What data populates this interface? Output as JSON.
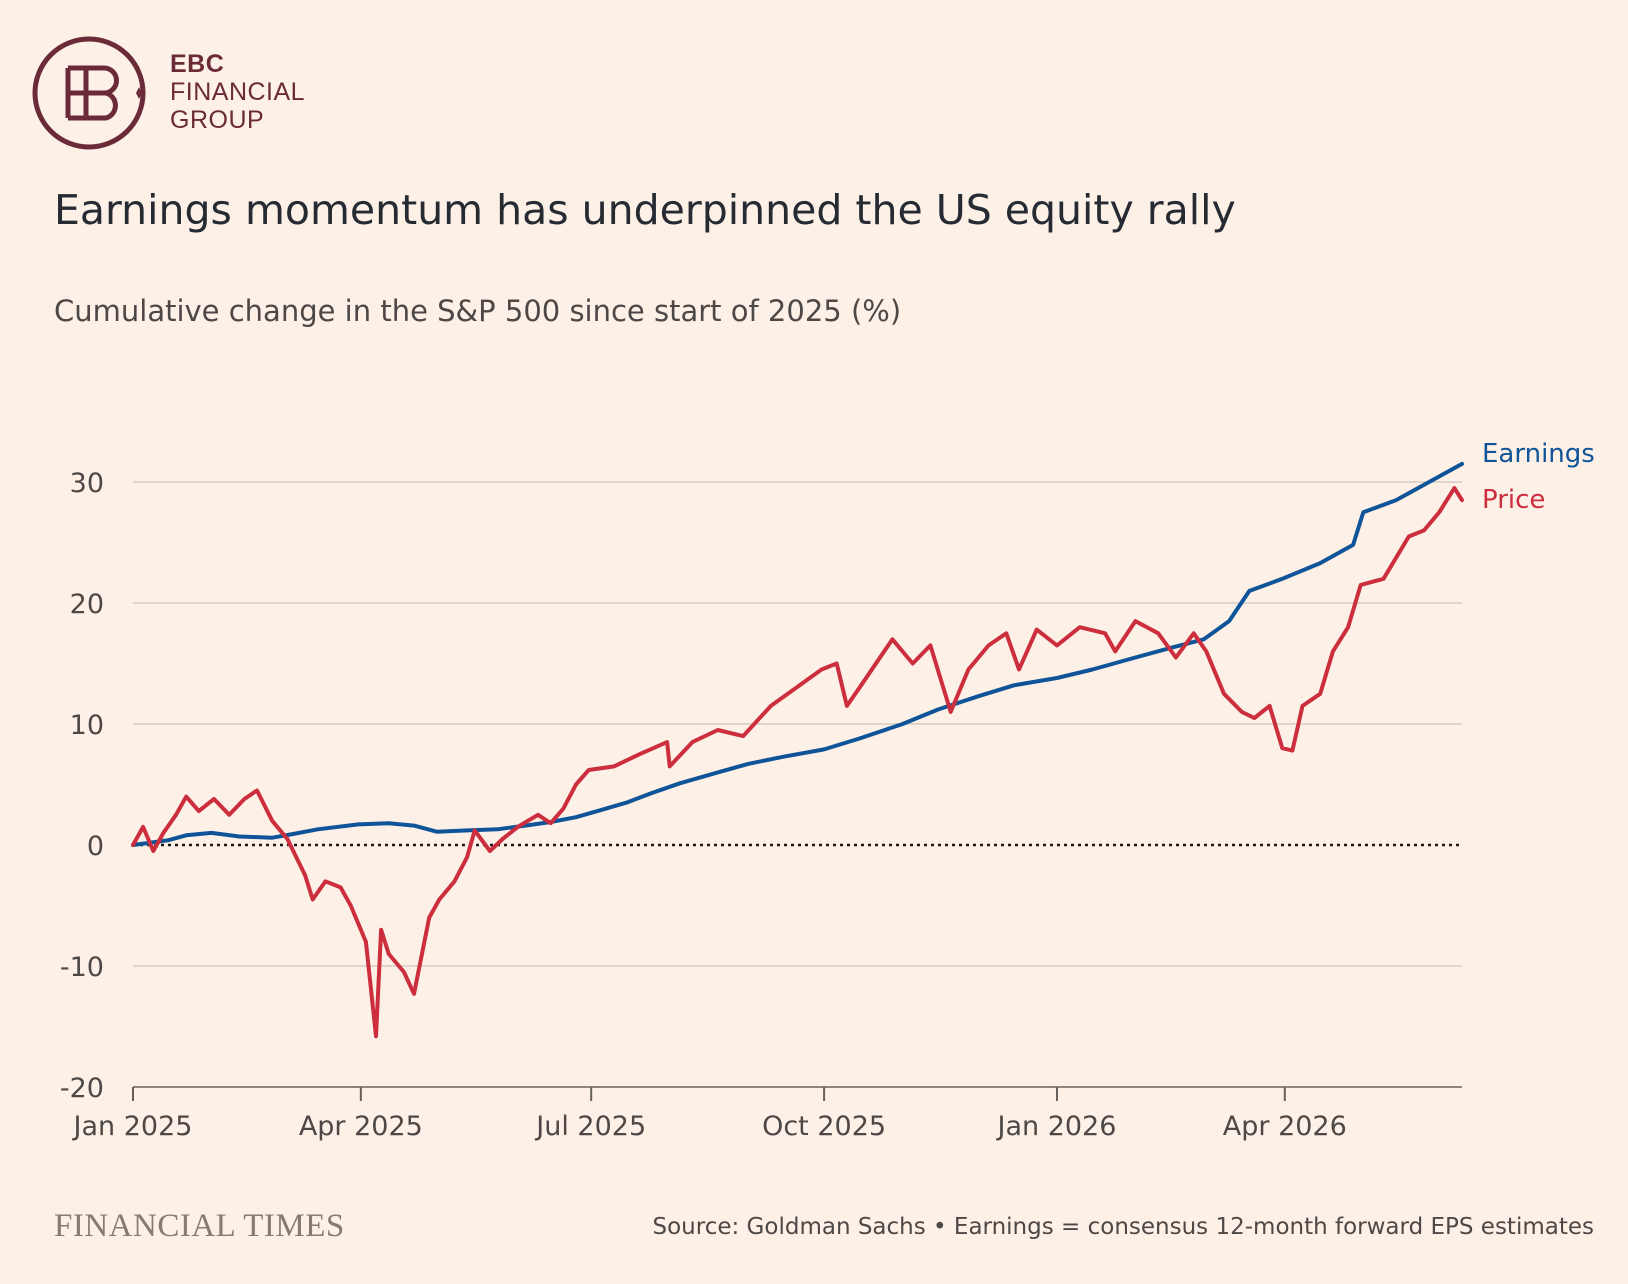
{
  "brand": {
    "line1": "EBC",
    "line2": "FINANCIAL",
    "line3": "GROUP",
    "color": "#6b2a37",
    "mark_letters": "EB"
  },
  "footer": {
    "publisher": "FINANCIAL TIMES",
    "source": "Source: Goldman Sachs • Earnings = consensus 12-month forward EPS estimates"
  },
  "chart_data": {
    "type": "line",
    "title": "Earnings momentum has underpinned the US equity rally",
    "subtitle": "Cumulative change in the S&P 500 since start of 2025 (%)",
    "xlabel": "",
    "ylabel": "",
    "x_range": [
      "2025-01-01",
      "2026-06-10"
    ],
    "ylim": [
      -20,
      32
    ],
    "y_ticks": [
      30,
      20,
      10,
      0,
      -10,
      -20
    ],
    "x_ticks": [
      {
        "date": "2025-01-01",
        "label": "Jan 2025"
      },
      {
        "date": "2025-04-01",
        "label": "Apr 2025"
      },
      {
        "date": "2025-07-01",
        "label": "Jul 2025"
      },
      {
        "date": "2025-10-01",
        "label": "Oct 2025"
      },
      {
        "date": "2026-01-01",
        "label": "Jan 2026"
      },
      {
        "date": "2026-04-01",
        "label": "Apr 2026"
      }
    ],
    "grid": "horizontal",
    "zero_line": "dotted",
    "legend": "labels at right end of lines",
    "series": [
      {
        "name": "Earnings",
        "color": "#0f5499",
        "points": [
          [
            "2025-01-01",
            0
          ],
          [
            "2025-01-08",
            0.2
          ],
          [
            "2025-01-15",
            0.4
          ],
          [
            "2025-01-22",
            0.8
          ],
          [
            "2025-02-01",
            1.0
          ],
          [
            "2025-02-12",
            0.7
          ],
          [
            "2025-02-25",
            0.6
          ],
          [
            "2025-03-05",
            0.9
          ],
          [
            "2025-03-15",
            1.3
          ],
          [
            "2025-03-31",
            1.7
          ],
          [
            "2025-04-12",
            1.8
          ],
          [
            "2025-04-22",
            1.6
          ],
          [
            "2025-05-01",
            1.1
          ],
          [
            "2025-05-12",
            1.2
          ],
          [
            "2025-05-25",
            1.3
          ],
          [
            "2025-06-05",
            1.6
          ],
          [
            "2025-06-15",
            1.9
          ],
          [
            "2025-06-25",
            2.3
          ],
          [
            "2025-07-05",
            2.9
          ],
          [
            "2025-07-15",
            3.5
          ],
          [
            "2025-07-25",
            4.3
          ],
          [
            "2025-08-05",
            5.1
          ],
          [
            "2025-08-20",
            6.0
          ],
          [
            "2025-09-01",
            6.7
          ],
          [
            "2025-09-15",
            7.3
          ],
          [
            "2025-10-01",
            7.9
          ],
          [
            "2025-10-15",
            8.8
          ],
          [
            "2025-11-01",
            10.0
          ],
          [
            "2025-11-15",
            11.2
          ],
          [
            "2025-12-01",
            12.3
          ],
          [
            "2025-12-15",
            13.2
          ],
          [
            "2026-01-01",
            13.8
          ],
          [
            "2026-01-15",
            14.5
          ],
          [
            "2026-02-01",
            15.5
          ],
          [
            "2026-02-15",
            16.3
          ],
          [
            "2026-02-28",
            17.0
          ],
          [
            "2026-03-10",
            18.5
          ],
          [
            "2026-03-18",
            21.0
          ],
          [
            "2026-03-31",
            22.0
          ],
          [
            "2026-04-15",
            23.3
          ],
          [
            "2026-04-28",
            24.8
          ],
          [
            "2026-05-02",
            27.5
          ],
          [
            "2026-05-15",
            28.5
          ],
          [
            "2026-05-28",
            30.0
          ],
          [
            "2026-06-10",
            31.5
          ]
        ]
      },
      {
        "name": "Price",
        "color": "#cc2e3e",
        "points": [
          [
            "2025-01-01",
            0
          ],
          [
            "2025-01-05",
            1.5
          ],
          [
            "2025-01-09",
            -0.5
          ],
          [
            "2025-01-13",
            1.0
          ],
          [
            "2025-01-18",
            2.5
          ],
          [
            "2025-01-22",
            4.0
          ],
          [
            "2025-01-27",
            2.8
          ],
          [
            "2025-02-02",
            3.8
          ],
          [
            "2025-02-08",
            2.5
          ],
          [
            "2025-02-14",
            3.8
          ],
          [
            "2025-02-19",
            4.5
          ],
          [
            "2025-02-25",
            2.0
          ],
          [
            "2025-03-03",
            0.5
          ],
          [
            "2025-03-10",
            -2.5
          ],
          [
            "2025-03-13",
            -4.5
          ],
          [
            "2025-03-18",
            -3.0
          ],
          [
            "2025-03-24",
            -3.5
          ],
          [
            "2025-03-28",
            -5.0
          ],
          [
            "2025-04-03",
            -8.0
          ],
          [
            "2025-04-07",
            -15.8
          ],
          [
            "2025-04-09",
            -7.0
          ],
          [
            "2025-04-12",
            -9.0
          ],
          [
            "2025-04-18",
            -10.5
          ],
          [
            "2025-04-22",
            -12.3
          ],
          [
            "2025-04-28",
            -6.0
          ],
          [
            "2025-05-02",
            -4.5
          ],
          [
            "2025-05-08",
            -3.0
          ],
          [
            "2025-05-13",
            -1.0
          ],
          [
            "2025-05-16",
            1.2
          ],
          [
            "2025-05-22",
            -0.5
          ],
          [
            "2025-05-27",
            0.5
          ],
          [
            "2025-06-02",
            1.5
          ],
          [
            "2025-06-10",
            2.5
          ],
          [
            "2025-06-15",
            1.8
          ],
          [
            "2025-06-20",
            3.0
          ],
          [
            "2025-06-25",
            5.0
          ],
          [
            "2025-06-30",
            6.2
          ],
          [
            "2025-07-10",
            6.5
          ],
          [
            "2025-07-20",
            7.5
          ],
          [
            "2025-07-31",
            8.5
          ],
          [
            "2025-08-01",
            6.5
          ],
          [
            "2025-08-10",
            8.5
          ],
          [
            "2025-08-20",
            9.5
          ],
          [
            "2025-08-30",
            9.0
          ],
          [
            "2025-09-10",
            11.5
          ],
          [
            "2025-09-20",
            13.0
          ],
          [
            "2025-09-30",
            14.5
          ],
          [
            "2025-10-06",
            15.0
          ],
          [
            "2025-10-10",
            11.5
          ],
          [
            "2025-10-15",
            13.0
          ],
          [
            "2025-10-28",
            17.0
          ],
          [
            "2025-11-05",
            15.0
          ],
          [
            "2025-11-12",
            16.5
          ],
          [
            "2025-11-20",
            11.0
          ],
          [
            "2025-11-27",
            14.5
          ],
          [
            "2025-12-05",
            16.5
          ],
          [
            "2025-12-12",
            17.5
          ],
          [
            "2025-12-17",
            14.5
          ],
          [
            "2025-12-24",
            17.8
          ],
          [
            "2026-01-01",
            16.5
          ],
          [
            "2026-01-10",
            18.0
          ],
          [
            "2026-01-20",
            17.5
          ],
          [
            "2026-01-24",
            16.0
          ],
          [
            "2026-02-01",
            18.5
          ],
          [
            "2026-02-10",
            17.5
          ],
          [
            "2026-02-17",
            15.5
          ],
          [
            "2026-02-24",
            17.5
          ],
          [
            "2026-03-01",
            16.0
          ],
          [
            "2026-03-08",
            12.5
          ],
          [
            "2026-03-15",
            11.0
          ],
          [
            "2026-03-20",
            10.5
          ],
          [
            "2026-03-26",
            11.5
          ],
          [
            "2026-03-31",
            8.0
          ],
          [
            "2026-04-04",
            7.8
          ],
          [
            "2026-04-08",
            11.5
          ],
          [
            "2026-04-15",
            12.5
          ],
          [
            "2026-04-20",
            16.0
          ],
          [
            "2026-04-26",
            18.0
          ],
          [
            "2026-05-01",
            21.5
          ],
          [
            "2026-05-10",
            22.0
          ],
          [
            "2026-05-20",
            25.5
          ],
          [
            "2026-05-26",
            26.0
          ],
          [
            "2026-06-01",
            27.5
          ],
          [
            "2026-06-07",
            29.5
          ],
          [
            "2026-06-10",
            28.5
          ]
        ]
      }
    ]
  }
}
